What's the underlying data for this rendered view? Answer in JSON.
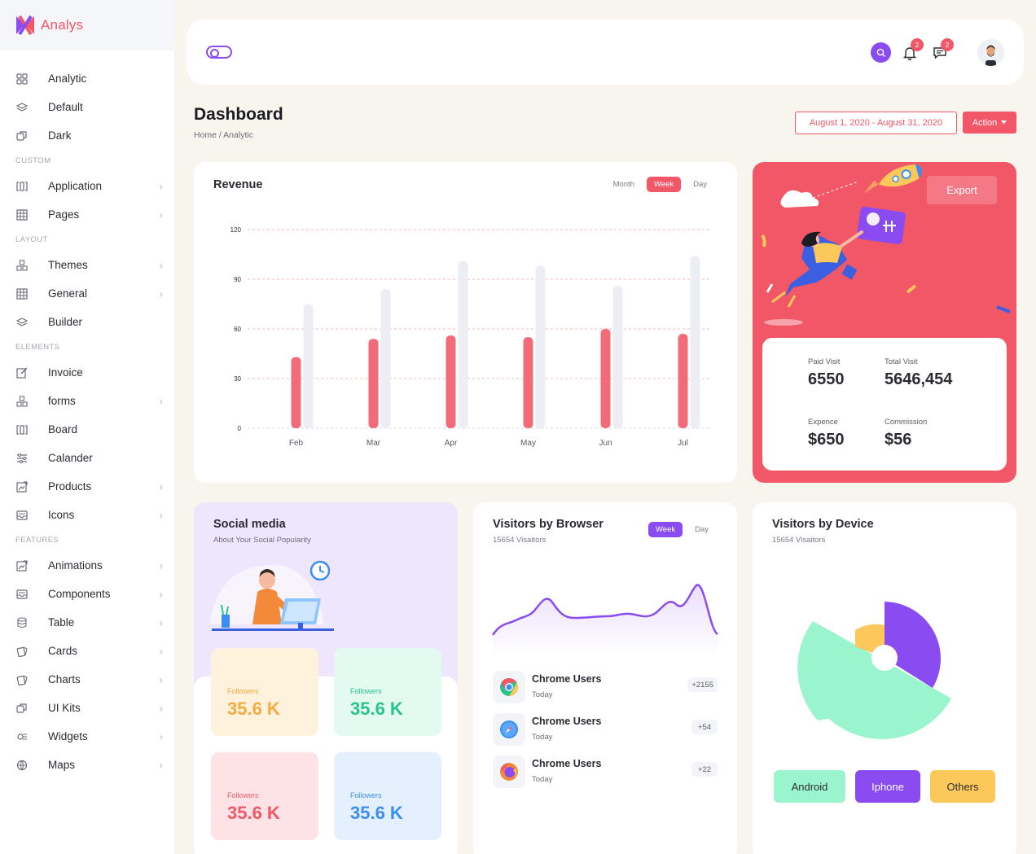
{
  "app": {
    "name": "Analys"
  },
  "sidebar": {
    "items": [
      {
        "type": "item",
        "label": "Analytic",
        "icon": "grid-icon",
        "chevron": false
      },
      {
        "type": "item",
        "label": "Default",
        "icon": "layers-icon",
        "chevron": false
      },
      {
        "type": "item",
        "label": "Dark",
        "icon": "copy-icon",
        "chevron": false
      },
      {
        "type": "section",
        "label": "CUSTOM"
      },
      {
        "type": "item",
        "label": "Application",
        "icon": "columns-icon",
        "chevron": true
      },
      {
        "type": "item",
        "label": "Pages",
        "icon": "table-icon",
        "chevron": true
      },
      {
        "type": "section",
        "label": "LAYOUT"
      },
      {
        "type": "item",
        "label": "Themes",
        "icon": "boxes-icon",
        "chevron": true
      },
      {
        "type": "item",
        "label": "General",
        "icon": "table-icon",
        "chevron": true
      },
      {
        "type": "item",
        "label": "Builder",
        "icon": "layers-icon",
        "chevron": false
      },
      {
        "type": "section",
        "label": "ELEMENTS"
      },
      {
        "type": "item",
        "label": "Invoice",
        "icon": "edit-icon",
        "chevron": false
      },
      {
        "type": "item",
        "label": "forms",
        "icon": "boxes-icon",
        "chevron": true
      },
      {
        "type": "item",
        "label": "Board",
        "icon": "columns-icon",
        "chevron": false
      },
      {
        "type": "item",
        "label": "Calander",
        "icon": "sliders-icon",
        "chevron": false
      },
      {
        "type": "item",
        "label": "Products",
        "icon": "image-edit-icon",
        "chevron": true
      },
      {
        "type": "item",
        "label": "Icons",
        "icon": "inbox-icon",
        "chevron": true
      },
      {
        "type": "section",
        "label": "FEATURES"
      },
      {
        "type": "item",
        "label": "Animations",
        "icon": "image-edit-icon",
        "chevron": true
      },
      {
        "type": "item",
        "label": "Components",
        "icon": "inbox-icon",
        "chevron": true
      },
      {
        "type": "item",
        "label": "Table",
        "icon": "database-icon",
        "chevron": true
      },
      {
        "type": "item",
        "label": "Cards",
        "icon": "cards-icon",
        "chevron": true
      },
      {
        "type": "item",
        "label": "Charts",
        "icon": "cards-icon",
        "chevron": true
      },
      {
        "type": "item",
        "label": "UI Kits",
        "icon": "copy-icon",
        "chevron": true
      },
      {
        "type": "item",
        "label": "Widgets",
        "icon": "widget-icon",
        "chevron": true
      },
      {
        "type": "item",
        "label": "Maps",
        "icon": "globe-icon",
        "chevron": true
      }
    ]
  },
  "header": {
    "notifications_count": "2",
    "messages_count": "2"
  },
  "page": {
    "title": "Dashboard",
    "breadcrumb": "Home  /  Analytic",
    "date_range": "August 1, 2020 - August 31, 2020",
    "action_label": "Action"
  },
  "revenue": {
    "title": "Revenue",
    "tabs": [
      "Month",
      "Week",
      "Day"
    ],
    "active_tab": "Week"
  },
  "chart_data": {
    "type": "bar",
    "title": "Revenue",
    "categories": [
      "Feb",
      "Mar",
      "Apr",
      "May",
      "Jun",
      "Jul"
    ],
    "series": [
      {
        "values": [
          43,
          54,
          56,
          55,
          60,
          57
        ],
        "color": "#f36b79"
      },
      {
        "values": [
          75,
          84,
          101,
          98,
          86,
          104
        ],
        "color": "#eceef3"
      }
    ],
    "yticks": [
      0,
      30,
      60,
      90,
      120
    ],
    "ylim": [
      0,
      120
    ],
    "grid": true
  },
  "promo": {
    "export_label": "Export",
    "stats": [
      {
        "label": "Paid Visit",
        "value": "6550"
      },
      {
        "label": "Total Visit",
        "value": "5646,454"
      },
      {
        "label": "Expence",
        "value": "$650"
      },
      {
        "label": "Commission",
        "value": "$56"
      }
    ]
  },
  "social": {
    "title": "Social media",
    "subtitle": "About Your Social Popularity",
    "tiles": [
      {
        "label": "Followers",
        "value": "35.6 K",
        "bg": "#fff2dc",
        "color": "#f8a940"
      },
      {
        "label": "Followers",
        "value": "35.6 K",
        "bg": "#e3faf0",
        "color": "#27c48e"
      },
      {
        "label": "Followers",
        "value": "35.6 K",
        "bg": "#fde2e6",
        "color": "#f25767"
      },
      {
        "label": "Followers",
        "value": "35.6 K",
        "bg": "#e4f0fd",
        "color": "#3a8ef2"
      }
    ]
  },
  "browser": {
    "title": "Visitors by Browser",
    "subtitle": "15654 Visaitors",
    "tabs": [
      "Week",
      "Day"
    ],
    "active_tab": "Week",
    "rows": [
      {
        "name": "Chrome Users",
        "when": "Today",
        "count": "+2155",
        "icon": "chrome-icon"
      },
      {
        "name": "Chrome Users",
        "when": "Today",
        "count": "+54",
        "icon": "safari-icon"
      },
      {
        "name": "Chrome Users",
        "when": "Today",
        "count": "+22",
        "icon": "firefox-icon"
      }
    ]
  },
  "device": {
    "title": "Visitors by Device",
    "subtitle": "15654 Visaitors",
    "buttons": [
      {
        "label": "Android",
        "bg": "#9af5cf",
        "color": "#2b2b33"
      },
      {
        "label": "Iphone",
        "bg": "#8a4cf0",
        "color": "#ffffff"
      },
      {
        "label": "Others",
        "bg": "#fdc85a",
        "color": "#2b2b33"
      }
    ]
  }
}
